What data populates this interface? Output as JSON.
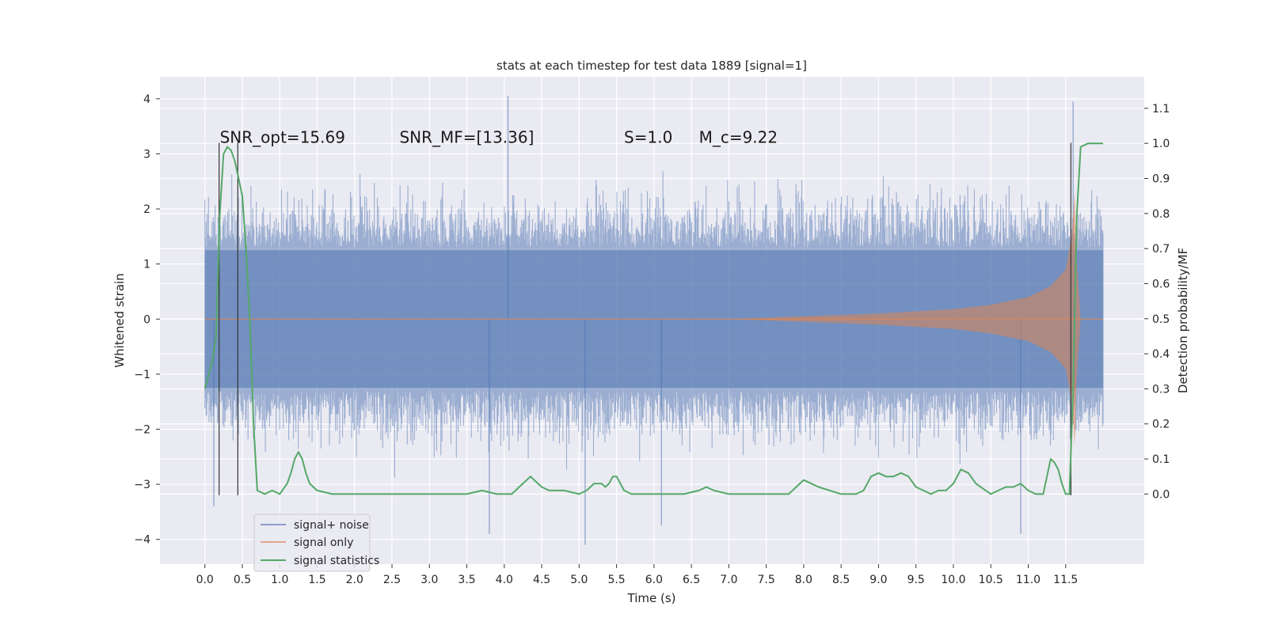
{
  "chart_data": {
    "type": "line",
    "title": "stats at each timestep for test data 1889 [signal=1]",
    "xlabel": "Time (s)",
    "ylabel": "Whitened strain",
    "ylabel_right": "Detection probability/MF",
    "xlim": [
      -0.6,
      12.55
    ],
    "ylim": [
      -4.45,
      4.4
    ],
    "ylim_right": [
      -0.2,
      1.19
    ],
    "x_ticks": [
      0.0,
      0.5,
      1.0,
      1.5,
      2.0,
      2.5,
      3.0,
      3.5,
      4.0,
      4.5,
      5.0,
      5.5,
      6.0,
      6.5,
      7.0,
      7.5,
      8.0,
      8.5,
      9.0,
      9.5,
      10.0,
      10.5,
      11.0,
      11.5
    ],
    "x_tick_labels": [
      "0.0",
      "0.5",
      "1.0",
      "1.5",
      "2.0",
      "2.5",
      "3.0",
      "3.5",
      "4.0",
      "4.5",
      "5.0",
      "5.5",
      "6.0",
      "6.5",
      "7.0",
      "7.5",
      "8.0",
      "8.5",
      "9.0",
      "9.5",
      "10.0",
      "10.5",
      "11.0",
      "11.5"
    ],
    "y_ticks": [
      -4,
      -3,
      -2,
      -1,
      0,
      1,
      2,
      3,
      4
    ],
    "y_tick_labels": [
      "−4",
      "−3",
      "−2",
      "−1",
      "0",
      "1",
      "2",
      "3",
      "4"
    ],
    "y_ticks_right": [
      0.0,
      0.1,
      0.2,
      0.3,
      0.4,
      0.5,
      0.6,
      0.7,
      0.8,
      0.9,
      1.0,
      1.1
    ],
    "y_tick_labels_right": [
      "0.0",
      "0.1",
      "0.2",
      "0.3",
      "0.4",
      "0.5",
      "0.6",
      "0.7",
      "0.8",
      "0.9",
      "1.0",
      "1.1"
    ],
    "grid": true,
    "legend_position": "lower-left",
    "annotations": [
      {
        "text": "SNR_opt=15.69",
        "x": 0.2,
        "y": 3.2
      },
      {
        "text": "SNR_MF=[13.36]",
        "x": 2.6,
        "y": 3.2
      },
      {
        "text": "S=1.0",
        "x": 5.6,
        "y": 3.2
      },
      {
        "text": "M_c=9.22",
        "x": 6.6,
        "y": 3.2
      }
    ],
    "vertical_lines": [
      {
        "x": 0.19,
        "y_range": [
          -3.2,
          3.2
        ]
      },
      {
        "x": 0.44,
        "y_range": [
          -3.2,
          3.2
        ]
      },
      {
        "x": 11.57,
        "y_range": [
          -3.2,
          3.2
        ]
      }
    ],
    "series": [
      {
        "name": "signal+ noise",
        "color": "#4c72b0",
        "axis": "left",
        "kind": "noise-band",
        "x_range": [
          0.0,
          12.0
        ],
        "core_amplitude": 1.25,
        "max_peak": 4.05,
        "min_peak": -4.1
      },
      {
        "name": "signal only",
        "color": "#dd8452",
        "axis": "left",
        "kind": "chirp-envelope",
        "envelope": {
          "x": [
            7.0,
            8.0,
            9.0,
            10.0,
            10.5,
            11.0,
            11.3,
            11.5,
            11.58,
            11.62,
            11.65,
            11.7
          ],
          "y": [
            0.0,
            0.05,
            0.1,
            0.18,
            0.26,
            0.4,
            0.6,
            0.9,
            1.5,
            2.3,
            1.0,
            0.0
          ]
        }
      },
      {
        "name": "signal statistics",
        "color": "#55a868",
        "axis": "right",
        "kind": "line",
        "x": [
          0.0,
          0.1,
          0.15,
          0.2,
          0.25,
          0.3,
          0.35,
          0.4,
          0.45,
          0.5,
          0.55,
          0.6,
          0.65,
          0.7,
          0.8,
          0.9,
          1.0,
          1.1,
          1.15,
          1.2,
          1.25,
          1.3,
          1.35,
          1.4,
          1.5,
          1.7,
          1.8,
          2.0,
          2.5,
          3.0,
          3.5,
          3.7,
          3.9,
          4.1,
          4.2,
          4.3,
          4.35,
          4.4,
          4.5,
          4.6,
          4.8,
          5.0,
          5.1,
          5.2,
          5.3,
          5.35,
          5.4,
          5.45,
          5.5,
          5.6,
          5.7,
          5.8,
          6.0,
          6.4,
          6.6,
          6.7,
          6.8,
          7.0,
          7.5,
          7.8,
          7.9,
          8.0,
          8.2,
          8.5,
          8.7,
          8.8,
          8.9,
          9.0,
          9.1,
          9.2,
          9.3,
          9.4,
          9.5,
          9.7,
          9.8,
          9.9,
          10.0,
          10.1,
          10.2,
          10.3,
          10.5,
          10.6,
          10.7,
          10.8,
          10.9,
          11.0,
          11.1,
          11.2,
          11.25,
          11.3,
          11.35,
          11.4,
          11.45,
          11.5,
          11.55,
          11.6,
          11.65,
          11.7,
          11.8,
          11.9,
          12.0
        ],
        "y": [
          0.3,
          0.38,
          0.45,
          0.8,
          0.97,
          0.99,
          0.98,
          0.95,
          0.9,
          0.85,
          0.7,
          0.5,
          0.2,
          0.01,
          0.0,
          0.01,
          0.0,
          0.03,
          0.06,
          0.1,
          0.12,
          0.1,
          0.06,
          0.03,
          0.01,
          0.0,
          0.0,
          0.0,
          0.0,
          0.0,
          0.0,
          0.01,
          0.0,
          0.0,
          0.02,
          0.04,
          0.05,
          0.04,
          0.02,
          0.01,
          0.01,
          0.0,
          0.01,
          0.03,
          0.03,
          0.02,
          0.03,
          0.05,
          0.05,
          0.01,
          0.0,
          0.0,
          0.0,
          0.0,
          0.01,
          0.02,
          0.01,
          0.0,
          0.0,
          0.0,
          0.02,
          0.04,
          0.02,
          0.0,
          0.0,
          0.01,
          0.05,
          0.06,
          0.05,
          0.05,
          0.06,
          0.05,
          0.02,
          0.0,
          0.01,
          0.01,
          0.03,
          0.07,
          0.06,
          0.03,
          0.0,
          0.01,
          0.02,
          0.02,
          0.03,
          0.01,
          0.0,
          0.0,
          0.05,
          0.1,
          0.09,
          0.07,
          0.03,
          0.0,
          0.0,
          0.3,
          0.8,
          0.99,
          1.0,
          1.0,
          1.0
        ]
      }
    ]
  }
}
